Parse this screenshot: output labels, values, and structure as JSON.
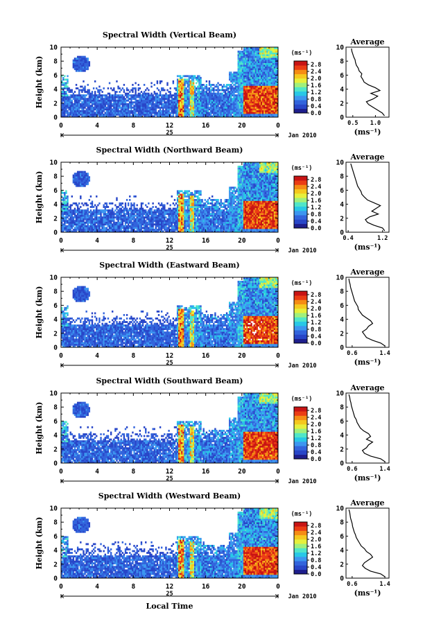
{
  "chart_data": [
    {
      "type": "heatmap",
      "title": "Spectral Width (Vertical Beam)",
      "ylabel": "Height (km)",
      "xlim": [
        0,
        24
      ],
      "ylim": [
        0,
        10
      ],
      "x_ticks": [
        "0",
        "4",
        "8",
        "12",
        "16",
        "20",
        "0"
      ],
      "y_ticks": [
        "0",
        "2",
        "4",
        "6",
        "8",
        "10"
      ],
      "day_label": "25",
      "month_label": "Jan 2010",
      "colorbar": {
        "unit": "(ms⁻¹)",
        "ticks": [
          "0.0",
          "0.4",
          "0.8",
          "1.2",
          "1.6",
          "2.0",
          "2.4",
          "2.8"
        ],
        "range": [
          0,
          3.0
        ]
      },
      "profile": {
        "title": "Average",
        "xlabel": "(ms⁻¹)",
        "x_ticks": [
          "0.5",
          "1.0"
        ],
        "xlim": [
          0.35,
          1.3
        ],
        "heights": [
          0.2,
          0.6,
          1.0,
          1.4,
          1.8,
          2.2,
          2.6,
          3.0,
          3.4,
          3.8,
          4.2,
          4.6,
          5.0,
          5.4,
          5.8,
          6.2,
          6.6,
          7.0,
          7.4,
          7.8,
          8.2,
          8.6,
          9.0,
          9.4,
          9.8
        ],
        "values": [
          1.2,
          1.15,
          1.05,
          0.95,
          0.85,
          0.8,
          0.95,
          1.05,
          0.9,
          1.1,
          1.0,
          0.85,
          0.75,
          0.72,
          0.68,
          0.7,
          0.64,
          0.62,
          0.58,
          0.56,
          0.55,
          0.52,
          0.5,
          0.48,
          0.47
        ]
      }
    },
    {
      "type": "heatmap",
      "title": "Spectral Width (Northward Beam)",
      "ylabel": "Height (km)",
      "xlim": [
        0,
        24
      ],
      "ylim": [
        0,
        10
      ],
      "x_ticks": [
        "0",
        "4",
        "8",
        "12",
        "16",
        "20",
        "0"
      ],
      "y_ticks": [
        "0",
        "2",
        "4",
        "6",
        "8",
        "10"
      ],
      "day_label": "25",
      "month_label": "Jan 2010",
      "colorbar": {
        "unit": "(ms⁻¹)",
        "ticks": [
          "0.0",
          "0.4",
          "0.8",
          "1.2",
          "1.6",
          "2.0",
          "2.4",
          "2.8"
        ],
        "range": [
          0,
          3.0
        ]
      },
      "profile": {
        "title": "Average",
        "xlabel": "(ms⁻¹)",
        "x_ticks": [
          "0.4",
          "1.2"
        ],
        "xlim": [
          0.35,
          1.35
        ],
        "heights": [
          0.2,
          0.6,
          1.0,
          1.4,
          1.8,
          2.2,
          2.6,
          3.0,
          3.4,
          3.8,
          4.2,
          4.6,
          5.0,
          5.4,
          5.8,
          6.2,
          6.6,
          7.0,
          7.4,
          7.8,
          8.2,
          8.6,
          9.0,
          9.4,
          9.8
        ],
        "values": [
          1.25,
          1.2,
          1.0,
          0.85,
          0.8,
          0.9,
          1.1,
          0.95,
          1.05,
          1.15,
          1.0,
          0.85,
          0.78,
          0.72,
          0.7,
          0.66,
          0.62,
          0.6,
          0.58,
          0.56,
          0.54,
          0.52,
          0.5,
          0.48,
          0.46
        ]
      }
    },
    {
      "type": "heatmap",
      "title": "Spectral Width (Eastward Beam)",
      "ylabel": "Height (km)",
      "xlim": [
        0,
        24
      ],
      "ylim": [
        0,
        10
      ],
      "x_ticks": [
        "0",
        "4",
        "8",
        "12",
        "16",
        "20",
        "0"
      ],
      "y_ticks": [
        "0",
        "2",
        "4",
        "6",
        "8",
        "10"
      ],
      "day_label": "25",
      "month_label": "Jan 2010",
      "colorbar": {
        "unit": "(ms⁻¹)",
        "ticks": [
          "0.0",
          "0.4",
          "0.8",
          "1.2",
          "1.6",
          "2.0",
          "2.4",
          "2.8"
        ],
        "range": [
          0,
          3.0
        ]
      },
      "profile": {
        "title": "Average",
        "xlabel": "(ms⁻¹)",
        "x_ticks": [
          "0.6",
          "1.4"
        ],
        "xlim": [
          0.45,
          1.5
        ],
        "heights": [
          0.2,
          0.6,
          1.0,
          1.4,
          1.8,
          2.2,
          2.6,
          3.0,
          3.4,
          3.8,
          4.2,
          4.6,
          5.0,
          5.4,
          5.8,
          6.2,
          6.6,
          7.0,
          7.4,
          7.8,
          8.2,
          8.6,
          9.0,
          9.4,
          9.8
        ],
        "values": [
          1.4,
          1.3,
          1.1,
          0.95,
          0.9,
          0.85,
          0.95,
          1.0,
          1.1,
          1.05,
          0.95,
          0.85,
          0.8,
          0.75,
          0.74,
          0.7,
          0.66,
          0.64,
          0.62,
          0.6,
          0.58,
          0.56,
          0.55,
          0.53,
          0.52
        ]
      }
    },
    {
      "type": "heatmap",
      "title": "Spectral Width (Southward Beam)",
      "ylabel": "Height (km)",
      "xlim": [
        0,
        24
      ],
      "ylim": [
        0,
        10
      ],
      "x_ticks": [
        "0",
        "4",
        "8",
        "12",
        "16",
        "20",
        "0"
      ],
      "y_ticks": [
        "0",
        "2",
        "4",
        "6",
        "8",
        "10"
      ],
      "day_label": "25",
      "month_label": "Jan 2010",
      "colorbar": {
        "unit": "(ms⁻¹)",
        "ticks": [
          "0.0",
          "0.4",
          "0.8",
          "1.2",
          "1.6",
          "2.0",
          "2.4",
          "2.8"
        ],
        "range": [
          0,
          3.0
        ]
      },
      "profile": {
        "title": "Average",
        "xlabel": "(ms⁻¹)",
        "x_ticks": [
          "0.6",
          "1.4"
        ],
        "xlim": [
          0.45,
          1.5
        ],
        "heights": [
          0.2,
          0.6,
          1.0,
          1.4,
          1.8,
          2.2,
          2.6,
          3.0,
          3.4,
          3.8,
          4.2,
          4.6,
          5.0,
          5.4,
          5.8,
          6.2,
          6.6,
          7.0,
          7.4,
          7.8,
          8.2,
          8.6,
          9.0,
          9.4,
          9.8
        ],
        "values": [
          1.4,
          1.3,
          1.05,
          0.9,
          0.85,
          0.95,
          1.0,
          1.1,
          0.95,
          1.05,
          1.0,
          0.88,
          0.8,
          0.76,
          0.72,
          0.7,
          0.66,
          0.64,
          0.62,
          0.6,
          0.58,
          0.57,
          0.55,
          0.54,
          0.52
        ]
      }
    },
    {
      "type": "heatmap",
      "title": "Spectral Width (Westward Beam)",
      "ylabel": "Height (km)",
      "xlabel": "Local Time",
      "xlim": [
        0,
        24
      ],
      "ylim": [
        0,
        10
      ],
      "x_ticks": [
        "0",
        "4",
        "8",
        "12",
        "16",
        "20",
        "0"
      ],
      "y_ticks": [
        "0",
        "2",
        "4",
        "6",
        "8",
        "10"
      ],
      "day_label": "25",
      "month_label": "Jan 2010",
      "colorbar": {
        "unit": "(ms⁻¹)",
        "ticks": [
          "0.0",
          "0.4",
          "0.8",
          "1.2",
          "1.6",
          "2.0",
          "2.4",
          "2.8"
        ],
        "range": [
          0,
          3.0
        ]
      },
      "profile": {
        "title": "Average",
        "xlabel": "(ms⁻¹)",
        "x_ticks": [
          "0.6",
          "1.4"
        ],
        "xlim": [
          0.45,
          1.5
        ],
        "heights": [
          0.2,
          0.6,
          1.0,
          1.4,
          1.8,
          2.2,
          2.6,
          3.0,
          3.4,
          3.8,
          4.2,
          4.6,
          5.0,
          5.4,
          5.8,
          6.2,
          6.6,
          7.0,
          7.4,
          7.8,
          8.2,
          8.6,
          9.0,
          9.4,
          9.8
        ],
        "values": [
          1.4,
          1.3,
          1.05,
          0.92,
          0.85,
          0.9,
          1.0,
          1.1,
          1.05,
          0.95,
          0.9,
          0.82,
          0.78,
          0.74,
          0.7,
          0.68,
          0.65,
          0.63,
          0.61,
          0.6,
          0.58,
          0.56,
          0.55,
          0.54,
          0.52
        ]
      }
    }
  ],
  "colors": {
    "scale": [
      "#1e1e8c",
      "#2846c8",
      "#3264dc",
      "#3c96f0",
      "#28c8e6",
      "#50e6c8",
      "#a0f07c",
      "#e6f03c",
      "#f5c81e",
      "#f58c14",
      "#eb3c14",
      "#c81414"
    ],
    "no_data": "#ffffff",
    "axis": "#000000",
    "background": "#ffffff"
  }
}
